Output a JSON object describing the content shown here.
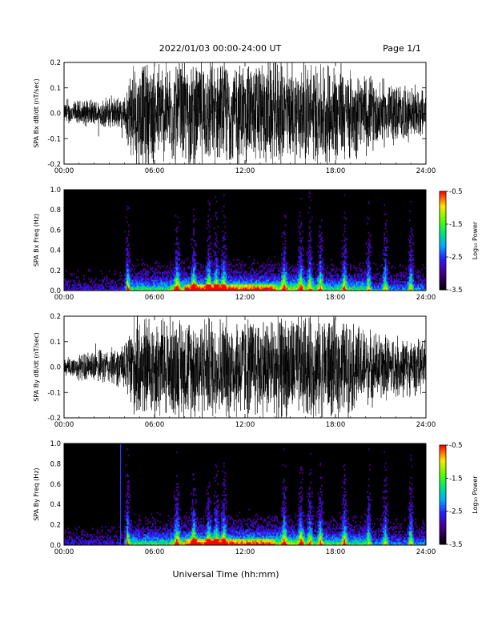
{
  "header": {
    "title": "2022/01/03  00:00-24:00 UT",
    "page": "Page 1/1"
  },
  "xlabel": "Universal Time (hh:mm)",
  "chart_data": [
    {
      "type": "line",
      "ylabel": "SPA Bx dB/dt (nT/sec)",
      "xlim": [
        0,
        24
      ],
      "ylim": [
        -0.2,
        0.2
      ],
      "xticks": [
        "00:00",
        "06:00",
        "12:00",
        "18:00",
        "24:00"
      ],
      "yticks": [
        "-0.2",
        "-0.1",
        "0.0",
        "0.1",
        "0.2"
      ],
      "envelope": {
        "x": [
          0,
          1,
          2,
          3,
          4,
          4.5,
          5,
          6,
          7,
          8,
          9,
          10,
          11,
          12,
          13,
          14,
          15,
          16,
          17,
          18,
          19,
          20,
          21,
          22,
          23,
          24
        ],
        "amplitude": [
          0.04,
          0.05,
          0.05,
          0.06,
          0.06,
          0.2,
          0.2,
          0.2,
          0.2,
          0.2,
          0.2,
          0.2,
          0.2,
          0.2,
          0.2,
          0.2,
          0.2,
          0.2,
          0.2,
          0.2,
          0.17,
          0.15,
          0.13,
          0.12,
          0.1,
          0.1
        ]
      }
    },
    {
      "type": "heatmap",
      "ylabel": "SPA Bx Freq (Hz)",
      "xlim": [
        0,
        24
      ],
      "ylim": [
        0,
        1.0
      ],
      "xticks": [
        "00:00",
        "06:00",
        "12:00",
        "18:00",
        "24:00"
      ],
      "yticks": [
        "0.0",
        "0.2",
        "0.4",
        "0.6",
        "0.8",
        "1.0"
      ],
      "colorbar": {
        "label": "Log₁₀ Power",
        "range": [
          -3.5,
          -0.5
        ],
        "ticks": [
          "-3.5",
          "-2.5",
          "-1.5",
          "-0.5"
        ]
      }
    },
    {
      "type": "line",
      "ylabel": "SPA By dB/dt (nT/sec)",
      "xlim": [
        0,
        24
      ],
      "ylim": [
        -0.2,
        0.2
      ],
      "xticks": [
        "00:00",
        "06:00",
        "12:00",
        "18:00",
        "24:00"
      ],
      "yticks": [
        "-0.2",
        "-0.1",
        "0.0",
        "0.1",
        "0.2"
      ],
      "envelope": {
        "x": [
          0,
          1,
          2,
          3,
          4,
          4.5,
          5,
          6,
          7,
          8,
          9,
          10,
          11,
          12,
          13,
          14,
          15,
          16,
          17,
          18,
          19,
          20,
          21,
          22,
          23,
          24
        ],
        "amplitude": [
          0.04,
          0.05,
          0.06,
          0.07,
          0.08,
          0.2,
          0.2,
          0.2,
          0.2,
          0.2,
          0.2,
          0.2,
          0.2,
          0.2,
          0.2,
          0.2,
          0.2,
          0.2,
          0.2,
          0.2,
          0.18,
          0.15,
          0.13,
          0.12,
          0.11,
          0.1
        ]
      }
    },
    {
      "type": "heatmap",
      "ylabel": "SPA By Freq (Hz)",
      "xlim": [
        0,
        24
      ],
      "ylim": [
        0,
        1.0
      ],
      "xticks": [
        "00:00",
        "06:00",
        "12:00",
        "18:00",
        "24:00"
      ],
      "yticks": [
        "0.0",
        "0.2",
        "0.4",
        "0.6",
        "0.8",
        "1.0"
      ],
      "colorbar": {
        "label": "Log₁₀ Power",
        "range": [
          -3.5,
          -0.5
        ],
        "ticks": [
          "-3.5",
          "-2.5",
          "-1.5",
          "-0.5"
        ]
      }
    }
  ]
}
